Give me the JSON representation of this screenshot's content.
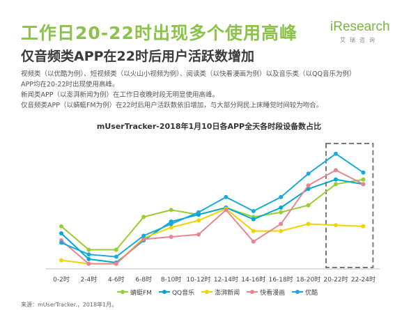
{
  "header": {
    "title": "工作日20-22时出现多个使用高峰",
    "subtitle": "仅音频类APP在22时后用户活跃数增加"
  },
  "logo": {
    "name": "iResearch",
    "sub": "艾瑞咨询"
  },
  "bullets": [
    "视频类（以优酷为例）、短视频类（以火山小视频为例）、阅读类（以快看漫画为例）以及音乐类（以QQ音乐为例）",
    "APP均在20-22时出现使用高峰。",
    "新闻类APP（以澎湃新闻为例）在工作日夜晚时段无明显使用高峰。",
    "仅音频类APP（以蜻蜓FM为例）在22时后用户活跃数依旧增加，与大部分网民上床睡觉时间较为吻合。"
  ],
  "source": "来源：mUserTracker.，2018年1月。",
  "chart_data": {
    "type": "line",
    "title": "mUserTracker-2018年1月10日各APP全天各时段设备数占比",
    "categories": [
      "0-2时",
      "2-4时",
      "4-6时",
      "6-8时",
      "8-10时",
      "10-12时",
      "12-14时",
      "14-16时",
      "16-18时",
      "18-20时",
      "20-22时",
      "22-24时"
    ],
    "ylim": [
      0,
      100
    ],
    "grid": false,
    "highlight_range": [
      "20-22时",
      "22-24时"
    ],
    "series": [
      {
        "name": "蜻蜓FM",
        "color": "#9acd32",
        "values": [
          34,
          14,
          14,
          42,
          48,
          44,
          50,
          42,
          46,
          52,
          70,
          74
        ]
      },
      {
        "name": "QQ音乐",
        "color": "#00a6d6",
        "values": [
          28,
          6,
          3,
          22,
          38,
          44,
          50,
          40,
          50,
          66,
          74,
          70
        ]
      },
      {
        "name": "澎湃新闻",
        "color": "#f2d300",
        "values": [
          5,
          2,
          2,
          24,
          33,
          39,
          49,
          30,
          30,
          36,
          35,
          34
        ]
      },
      {
        "name": "快看漫画",
        "color": "#e8848f",
        "values": [
          22,
          2,
          2,
          23,
          25,
          27,
          48,
          21,
          36,
          69,
          82,
          70
        ]
      },
      {
        "name": "优酷",
        "color": "#1aa8e0",
        "values": [
          20,
          10,
          8,
          26,
          36,
          46,
          59,
          47,
          59,
          79,
          96,
          80
        ]
      }
    ]
  }
}
